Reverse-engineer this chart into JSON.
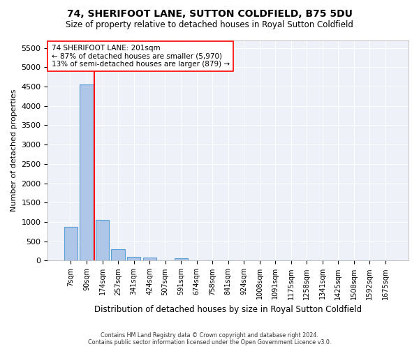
{
  "title1": "74, SHERIFOOT LANE, SUTTON COLDFIELD, B75 5DU",
  "title2": "Size of property relative to detached houses in Royal Sutton Coldfield",
  "xlabel": "Distribution of detached houses by size in Royal Sutton Coldfield",
  "ylabel": "Number of detached properties",
  "footnote": "Contains HM Land Registry data © Crown copyright and database right 2024.\nContains public sector information licensed under the Open Government Licence v3.0.",
  "bin_labels": [
    "7sqm",
    "90sqm",
    "174sqm",
    "257sqm",
    "341sqm",
    "424sqm",
    "507sqm",
    "591sqm",
    "674sqm",
    "758sqm",
    "841sqm",
    "924sqm",
    "1008sqm",
    "1091sqm",
    "1175sqm",
    "1258sqm",
    "1341sqm",
    "1425sqm",
    "1508sqm",
    "1592sqm",
    "1675sqm"
  ],
  "bar_values": [
    880,
    4560,
    1060,
    290,
    90,
    75,
    0,
    55,
    0,
    0,
    0,
    0,
    0,
    0,
    0,
    0,
    0,
    0,
    0,
    0,
    0
  ],
  "bar_color": "#aec6e8",
  "bar_edge_color": "#5a9fd4",
  "background_color": "#eef2f8",
  "grid_color": "#ffffff",
  "vline_pos": 1.5,
  "vline_color": "red",
  "annotation_text": "74 SHERIFOOT LANE: 201sqm\n← 87% of detached houses are smaller (5,970)\n13% of semi-detached houses are larger (879) →",
  "ylim": [
    0,
    5700
  ],
  "yticks": [
    0,
    500,
    1000,
    1500,
    2000,
    2500,
    3000,
    3500,
    4000,
    4500,
    5000,
    5500
  ]
}
